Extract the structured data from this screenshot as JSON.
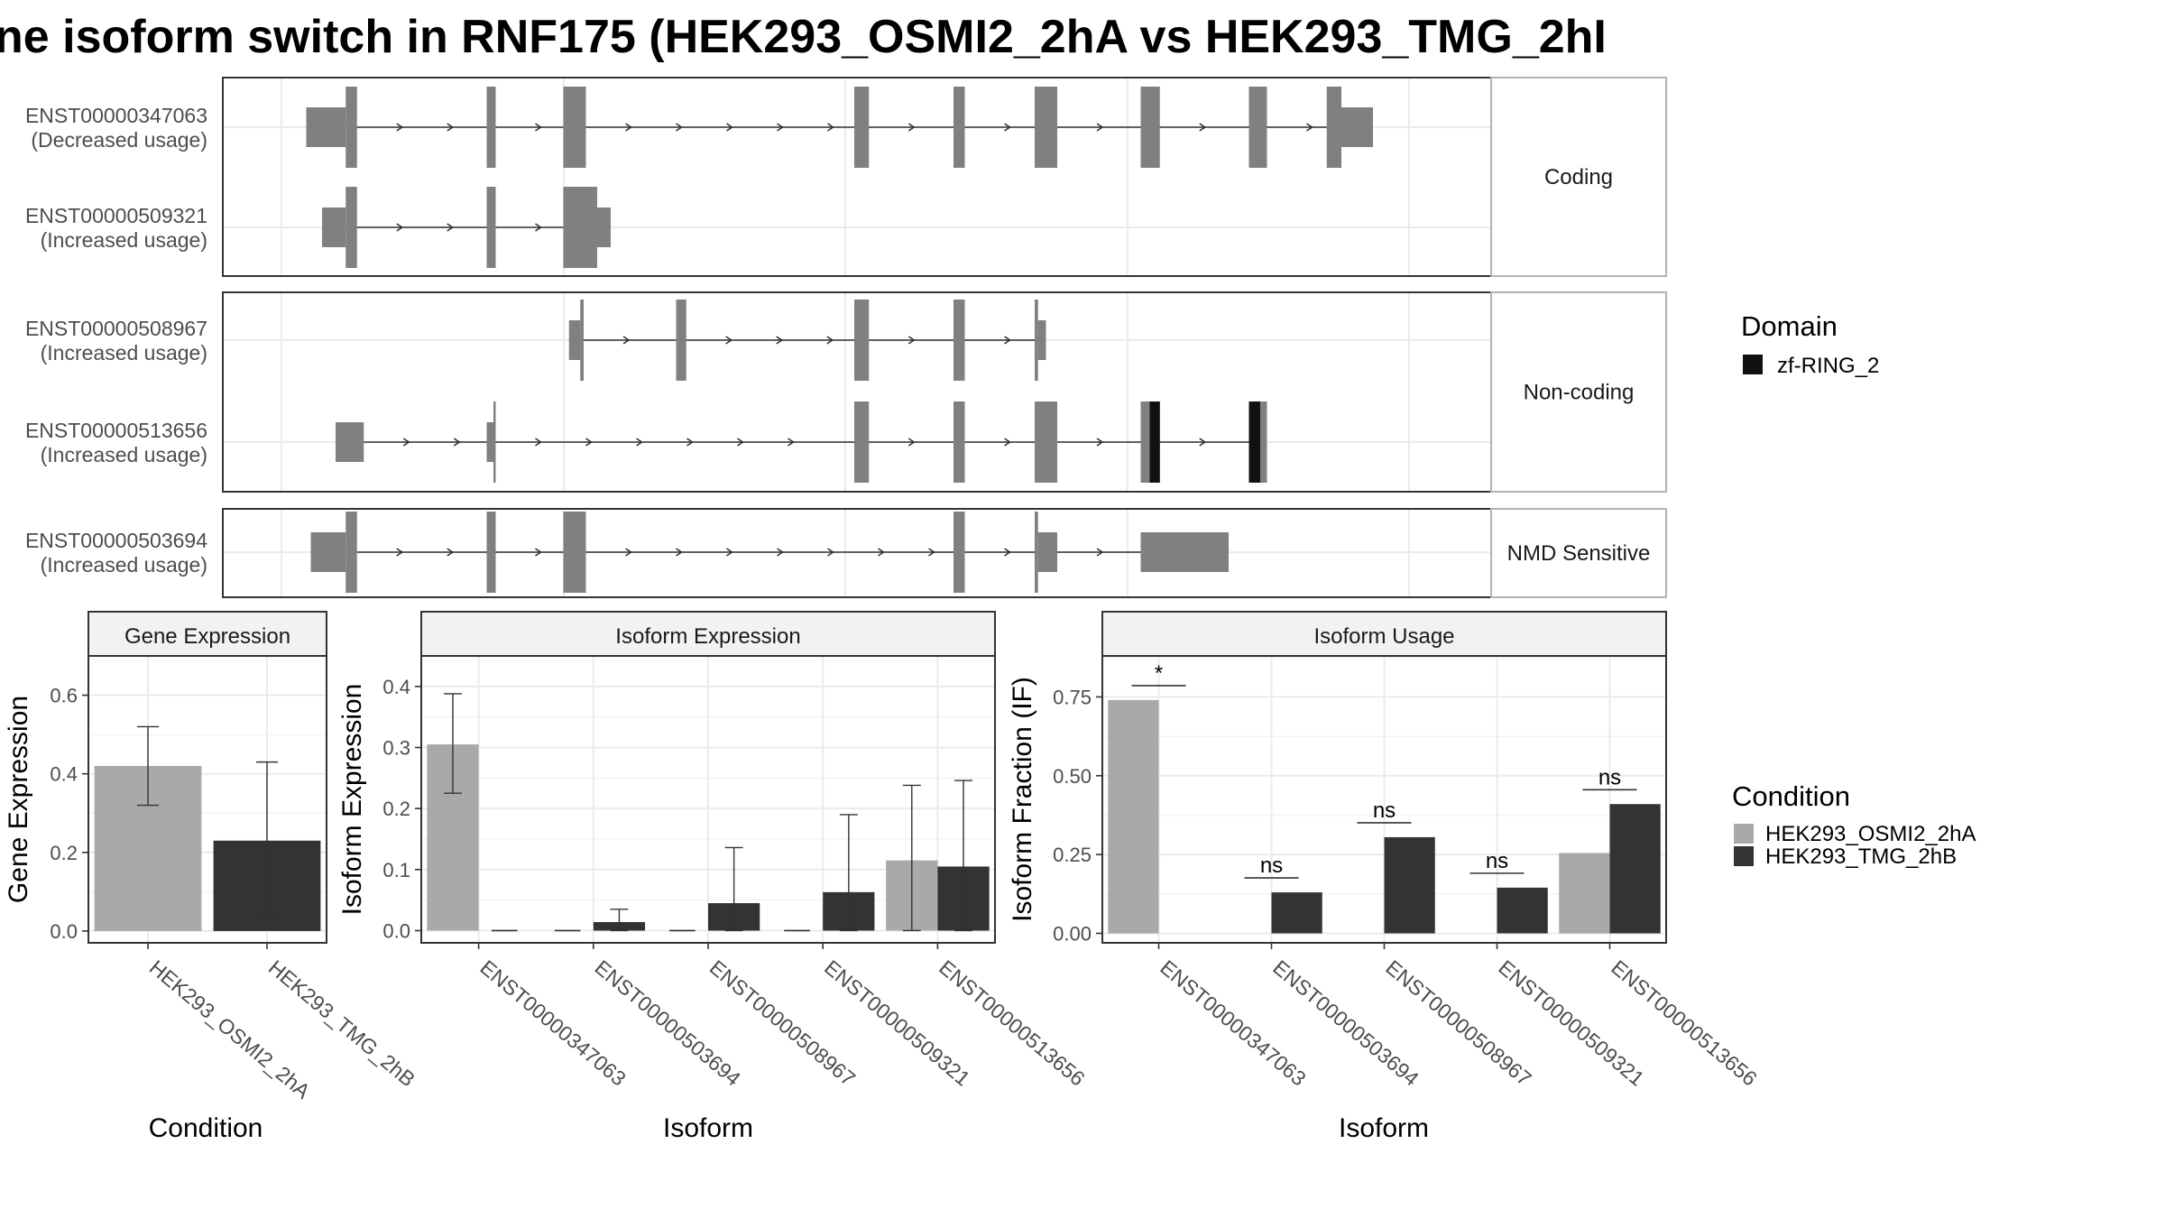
{
  "title": "ne isoform switch in RNF175 (HEK293_OSMI2_2hA vs HEK293_TMG_2hI",
  "colors": {
    "transcript": "#808080",
    "domain": "#111111",
    "condA": "#a9a9a9",
    "condB": "#333333",
    "grid": "#ebebeb",
    "frame": "#333333",
    "strip": "#f2f2f2"
  },
  "structure": {
    "coord_range": [
      0,
      1000
    ],
    "facets": [
      {
        "label": "Coding",
        "transcripts": [
          {
            "id": "ENST00000347063",
            "usage": "(Decreased usage)",
            "start": 22,
            "end": 968,
            "exons": [
              {
                "s": 22,
                "e": 57,
                "coding": false
              },
              {
                "s": 57,
                "e": 67,
                "coding": true
              },
              {
                "s": 182,
                "e": 190,
                "coding": true
              },
              {
                "s": 250,
                "e": 270,
                "coding": true
              },
              {
                "s": 508,
                "e": 521,
                "coding": true
              },
              {
                "s": 596,
                "e": 606,
                "coding": true
              },
              {
                "s": 668,
                "e": 688,
                "coding": true
              },
              {
                "s": 762,
                "e": 779,
                "coding": true
              },
              {
                "s": 858,
                "e": 874,
                "coding": true
              },
              {
                "s": 927,
                "e": 940,
                "coding": true
              },
              {
                "s": 940,
                "e": 968,
                "coding": false
              }
            ],
            "domains": []
          },
          {
            "id": "ENST00000509321",
            "usage": "(Increased usage)",
            "start": 36,
            "end": 292,
            "exons": [
              {
                "s": 36,
                "e": 57,
                "coding": false
              },
              {
                "s": 57,
                "e": 67,
                "coding": true
              },
              {
                "s": 182,
                "e": 190,
                "coding": true
              },
              {
                "s": 250,
                "e": 280,
                "coding": true
              },
              {
                "s": 280,
                "e": 292,
                "coding": false
              }
            ],
            "domains": []
          }
        ]
      },
      {
        "label": "Non-coding",
        "transcripts": [
          {
            "id": "ENST00000508967",
            "usage": "(Increased usage)",
            "start": 255,
            "end": 678,
            "exons": [
              {
                "s": 255,
                "e": 265,
                "coding": false
              },
              {
                "s": 265,
                "e": 268,
                "coding": true
              },
              {
                "s": 350,
                "e": 359,
                "coding": true
              },
              {
                "s": 508,
                "e": 521,
                "coding": true
              },
              {
                "s": 596,
                "e": 606,
                "coding": true
              },
              {
                "s": 668,
                "e": 671,
                "coding": true
              },
              {
                "s": 671,
                "e": 678,
                "coding": false
              }
            ],
            "domains": []
          },
          {
            "id": "ENST00000513656",
            "usage": "(Increased usage)",
            "start": 48,
            "end": 874,
            "exons": [
              {
                "s": 48,
                "e": 73,
                "coding": false
              },
              {
                "s": 182,
                "e": 188,
                "coding": false
              },
              {
                "s": 188,
                "e": 190,
                "coding": true
              },
              {
                "s": 508,
                "e": 521,
                "coding": true
              },
              {
                "s": 596,
                "e": 606,
                "coding": true
              },
              {
                "s": 668,
                "e": 688,
                "coding": true
              },
              {
                "s": 762,
                "e": 779,
                "coding": true
              },
              {
                "s": 858,
                "e": 874,
                "coding": true
              }
            ],
            "domains": [
              {
                "s": 770,
                "e": 779,
                "name": "zf-RING_2"
              },
              {
                "s": 858,
                "e": 868,
                "name": "zf-RING_2"
              }
            ]
          }
        ]
      },
      {
        "label": "NMD Sensitive",
        "transcripts": [
          {
            "id": "ENST00000503694",
            "usage": "(Increased usage)",
            "start": 26,
            "end": 840,
            "exons": [
              {
                "s": 26,
                "e": 57,
                "coding": false
              },
              {
                "s": 57,
                "e": 67,
                "coding": true
              },
              {
                "s": 182,
                "e": 190,
                "coding": true
              },
              {
                "s": 250,
                "e": 270,
                "coding": true
              },
              {
                "s": 596,
                "e": 606,
                "coding": true
              },
              {
                "s": 668,
                "e": 671,
                "coding": true
              },
              {
                "s": 671,
                "e": 688,
                "coding": false
              },
              {
                "s": 762,
                "e": 840,
                "coding": false
              }
            ],
            "domains": []
          }
        ]
      }
    ]
  },
  "legends": {
    "domain": {
      "title": "Domain",
      "items": [
        "zf-RING_2"
      ]
    },
    "condition": {
      "title": "Condition",
      "items": [
        "HEK293_OSMI2_2hA",
        "HEK293_TMG_2hB"
      ]
    }
  },
  "chart_data": [
    {
      "type": "bar",
      "title": "Gene Expression",
      "xlabel": "Condition",
      "ylabel": "Gene Expression",
      "ylim": [
        -0.03,
        0.7
      ],
      "yticks": [
        "0.0",
        "0.2",
        "0.4",
        "0.6"
      ],
      "categories": [
        "HEK293_OSMI2_2hA",
        "HEK293_TMG_2hB"
      ],
      "values": [
        0.42,
        0.23
      ],
      "errors": [
        [
          0.32,
          0.52
        ],
        [
          0.03,
          0.43
        ]
      ]
    },
    {
      "type": "bar",
      "title": "Isoform Expression",
      "xlabel": "Isoform",
      "ylabel": "Isoform Expression",
      "ylim": [
        -0.02,
        0.45
      ],
      "yticks": [
        "0.0",
        "0.1",
        "0.2",
        "0.3",
        "0.4"
      ],
      "categories": [
        "ENST00000347063",
        "ENST00000503694",
        "ENST00000508967",
        "ENST00000509321",
        "ENST00000513656"
      ],
      "series": [
        {
          "name": "HEK293_OSMI2_2hA",
          "values": [
            0.305,
            0.0,
            0.0,
            0.0,
            0.115
          ],
          "errors": [
            [
              0.225,
              0.388
            ],
            [
              0,
              0
            ],
            [
              0,
              0
            ],
            [
              0,
              0
            ],
            [
              0.0,
              0.238
            ]
          ]
        },
        {
          "name": "HEK293_TMG_2hB",
          "values": [
            0.0,
            0.014,
            0.045,
            0.063,
            0.105
          ],
          "errors": [
            [
              0,
              0
            ],
            [
              0.0,
              0.035
            ],
            [
              0.0,
              0.136
            ],
            [
              0.0,
              0.19
            ],
            [
              0.0,
              0.246
            ]
          ]
        }
      ]
    },
    {
      "type": "bar",
      "title": "Isoform Usage",
      "xlabel": "Isoform",
      "ylabel": "Isoform Fraction (IF)",
      "ylim": [
        -0.03,
        0.88
      ],
      "yticks": [
        "0.00",
        "0.25",
        "0.50",
        "0.75"
      ],
      "categories": [
        "ENST00000347063",
        "ENST00000503694",
        "ENST00000508967",
        "ENST00000509321",
        "ENST00000513656"
      ],
      "series": [
        {
          "name": "HEK293_OSMI2_2hA",
          "values": [
            0.74,
            0.0,
            0.0,
            0.0,
            0.255
          ]
        },
        {
          "name": "HEK293_TMG_2hB",
          "values": [
            0.0,
            0.13,
            0.305,
            0.145,
            0.41
          ]
        }
      ],
      "significance": [
        "*",
        "ns",
        "ns",
        "ns",
        "ns"
      ]
    }
  ]
}
